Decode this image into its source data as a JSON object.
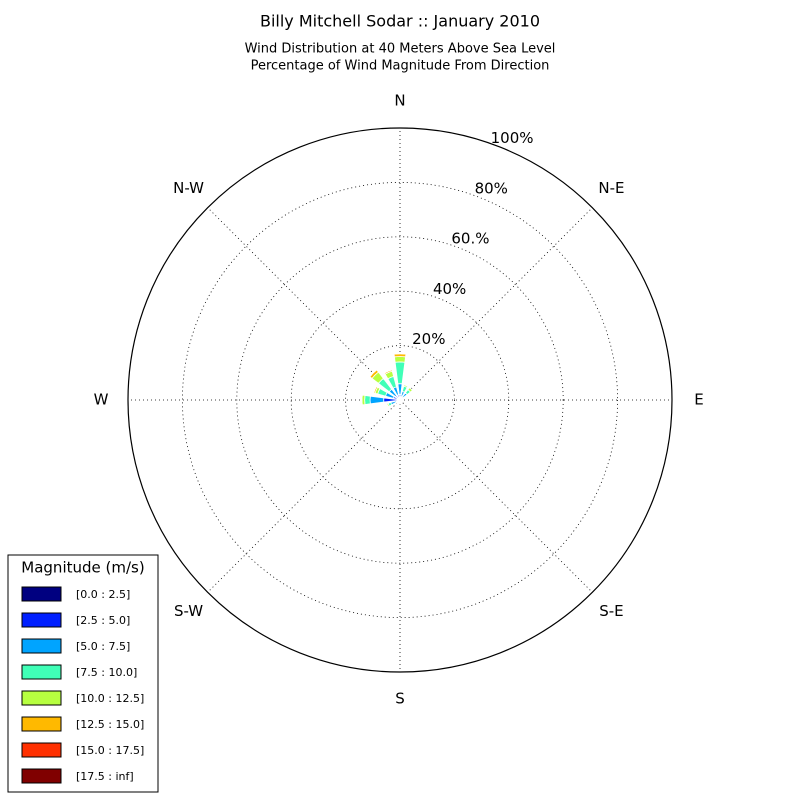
{
  "chart_data": {
    "type": "windrose",
    "title": "Billy Mitchell Sodar :: January 2010",
    "subtitle": [
      "Wind Distribution at 40 Meters Above Sea Level",
      "Percentage of Wind Magnitude From Direction"
    ],
    "categories": [
      "N",
      null,
      "N-E",
      null,
      "E",
      null,
      "S-E",
      null,
      "S",
      null,
      "S-W",
      null,
      "W",
      null,
      "N-W",
      null
    ],
    "rlim": [
      0,
      100
    ],
    "rticks": [
      {
        "value": 20,
        "label": "20%"
      },
      {
        "value": 40,
        "label": "40%"
      },
      {
        "value": 60,
        "label": "60.%"
      },
      {
        "value": 80,
        "label": "80%"
      },
      {
        "value": 100,
        "label": "100%"
      }
    ],
    "grid": true,
    "legend_title": "Magnitude (m/s)",
    "legend_position": "lower left",
    "series": [
      {
        "name": "[0.0 : 2.5]",
        "color": "#000080",
        "values": [
          0.5,
          0.3,
          0.3,
          0.2,
          0.2,
          0.1,
          0.2,
          0.1,
          0.5,
          0.2,
          0.3,
          0.5,
          1,
          0.5,
          0.5,
          0.5
        ]
      },
      {
        "name": "[2.5 : 5.0]",
        "color": "#0020ff",
        "values": [
          1.5,
          1,
          1,
          0.5,
          0.3,
          0.2,
          0.2,
          0.1,
          0.5,
          0.3,
          0.5,
          1,
          5,
          2,
          1.5,
          1.5
        ]
      },
      {
        "name": "[5.0 : 7.5]",
        "color": "#00a4ff",
        "values": [
          4,
          2,
          2,
          0.5,
          0.2,
          0.1,
          0,
          0,
          0.5,
          0.2,
          0.5,
          2,
          5,
          3,
          3,
          3
        ]
      },
      {
        "name": "[7.5 : 10.0]",
        "color": "#40ffb7",
        "values": [
          8,
          2,
          1.5,
          0.3,
          0,
          0,
          0,
          0,
          0,
          0,
          0.3,
          1,
          2,
          3,
          5,
          4
        ]
      },
      {
        "name": "[10.0 : 12.5]",
        "color": "#b7ff40",
        "values": [
          2,
          0.5,
          1,
          0,
          0,
          0,
          0,
          0,
          0,
          0,
          0,
          0.5,
          1,
          1,
          3,
          2
        ]
      },
      {
        "name": "[12.5 : 15.0]",
        "color": "#ffb900",
        "values": [
          1,
          0,
          0,
          0,
          0,
          0,
          0,
          0,
          0,
          0,
          0,
          0,
          0,
          0.5,
          1,
          0.5
        ]
      },
      {
        "name": "[15.0 : 17.5]",
        "color": "#ff3000",
        "values": [
          0,
          0,
          0,
          0,
          0,
          0,
          0,
          0,
          0,
          0,
          0,
          0,
          0,
          0,
          0,
          0
        ]
      },
      {
        "name": "[17.5 : inf]",
        "color": "#800000",
        "values": [
          0,
          0,
          0,
          0,
          0,
          0,
          0,
          0,
          0,
          0,
          0,
          0,
          0,
          0,
          0,
          0
        ]
      }
    ]
  }
}
